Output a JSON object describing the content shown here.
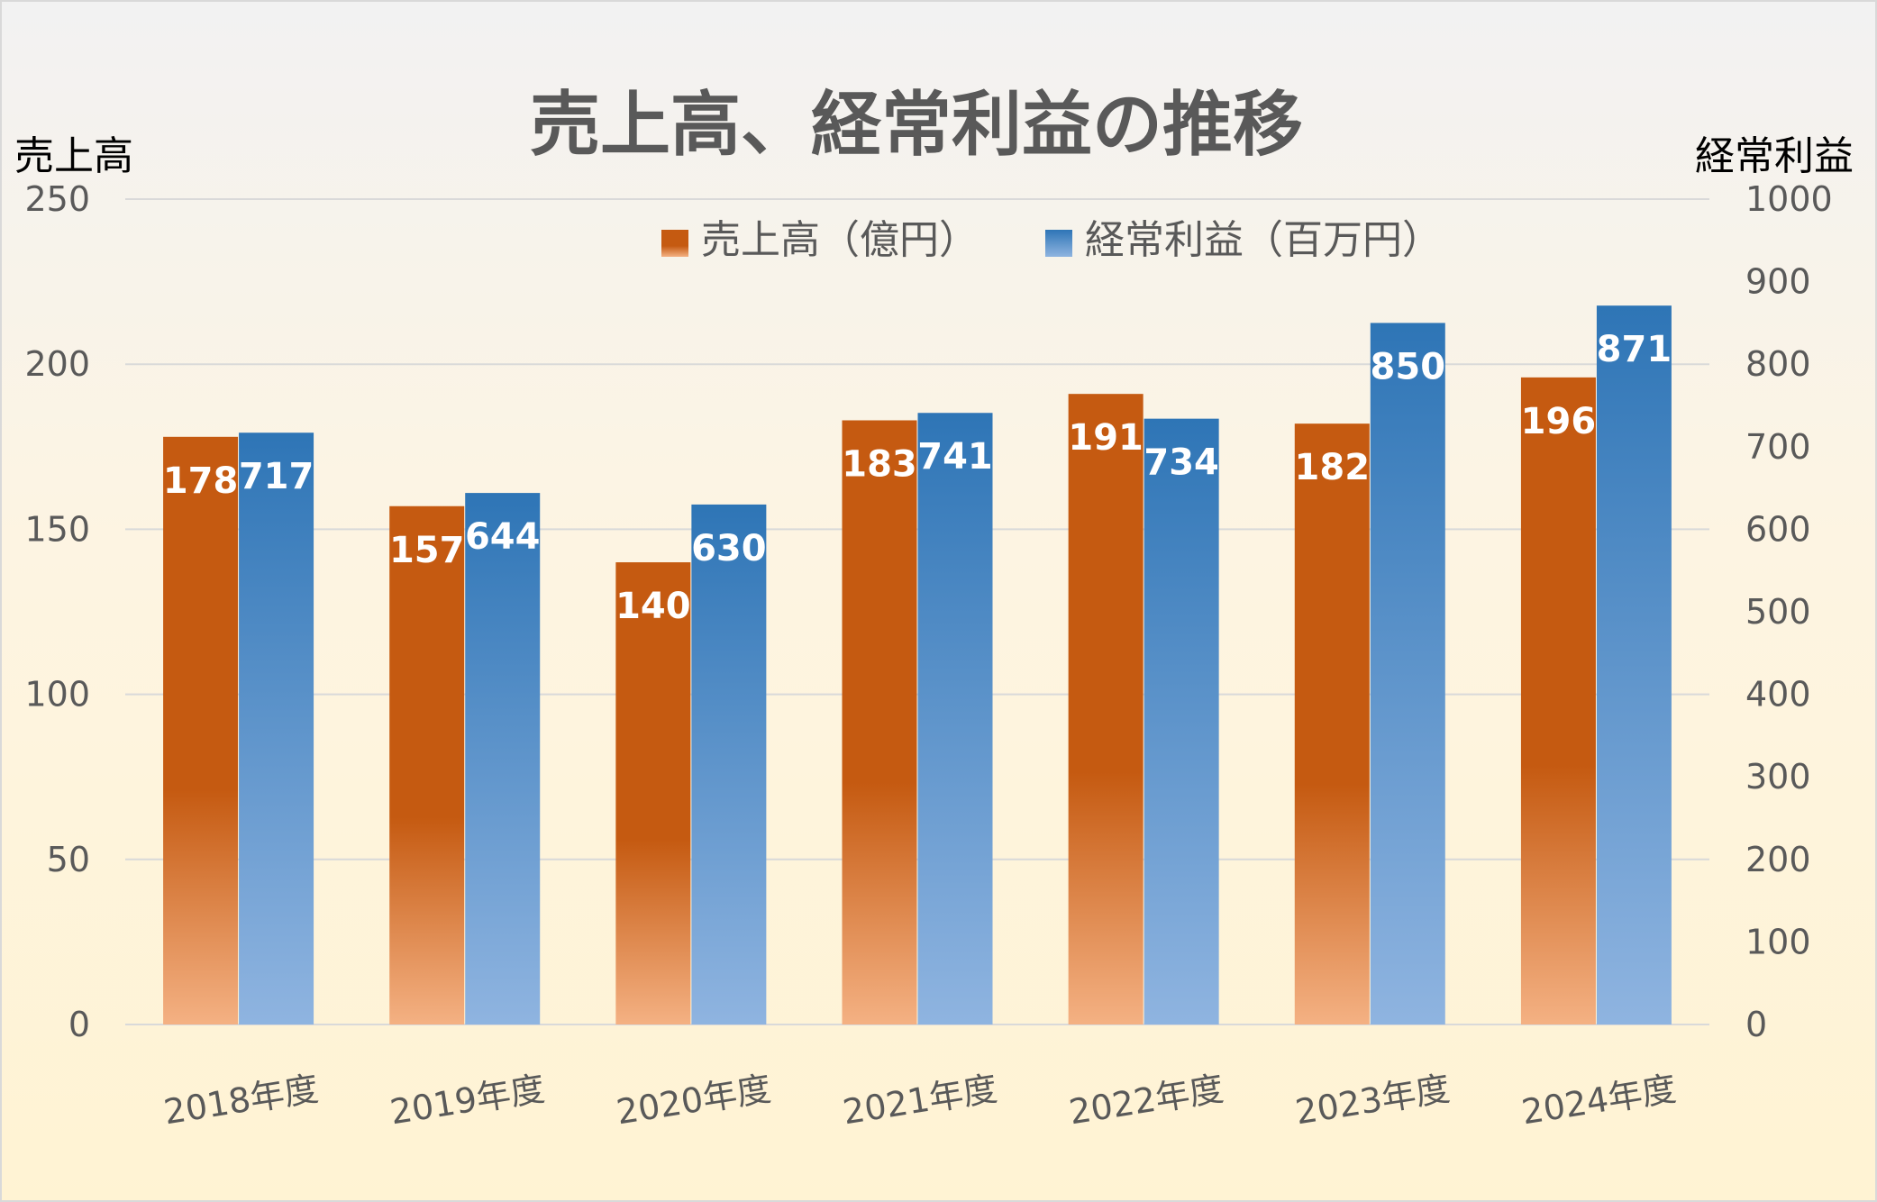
{
  "chart_data": {
    "type": "bar",
    "title": "売上高、経常利益の推移",
    "ylabel": "売上高",
    "y2label": "経常利益",
    "ylim": [
      0,
      250
    ],
    "y2lim": [
      0,
      1000
    ],
    "yticks": [
      "0",
      "50",
      "100",
      "150",
      "200",
      "250"
    ],
    "y2ticks": [
      "0",
      "100",
      "200",
      "300",
      "400",
      "500",
      "600",
      "700",
      "800",
      "900",
      "1000"
    ],
    "categories": [
      "2018年度",
      "2019年度",
      "2020年度",
      "2021年度",
      "2022年度",
      "2023年度",
      "2024年度"
    ],
    "series": [
      {
        "name": "売上高（億円）",
        "axis": "left",
        "color": "#c55a11",
        "values": [
          178,
          157,
          140,
          183,
          191,
          182,
          196
        ]
      },
      {
        "name": "経常利益（百万円）",
        "axis": "right",
        "color": "#2e75b6",
        "values": [
          717,
          644,
          630,
          741,
          734,
          850,
          871
        ]
      }
    ],
    "grid": true,
    "legend": "top-center",
    "data_labels": true
  }
}
